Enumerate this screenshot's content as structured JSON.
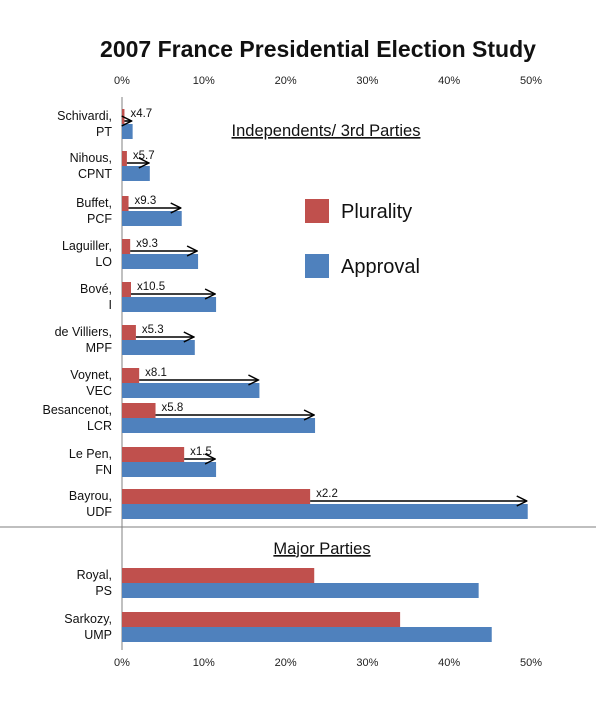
{
  "chart_data": {
    "type": "bar",
    "orientation": "horizontal",
    "title": "2007 France Presidential Election Study",
    "x_ticks": [
      "0%",
      "10%",
      "20%",
      "30%",
      "40%",
      "50%"
    ],
    "xlim": [
      0,
      50
    ],
    "legend": {
      "placement": "center-right",
      "entries": [
        "Plurality",
        "Approval"
      ]
    },
    "colors": {
      "plurality": "#c0504d",
      "approval": "#4f81bd"
    },
    "sections": [
      {
        "label": "Independents/ 3rd Parties",
        "candidates": [
          {
            "name": "Schivardi,",
            "party": "PT",
            "plurality": 0.3,
            "approval": 1.3,
            "multiplier": "x4.7"
          },
          {
            "name": "Nihous,",
            "party": "CPNT",
            "plurality": 0.6,
            "approval": 3.4,
            "multiplier": "x5.7"
          },
          {
            "name": "Buffet,",
            "party": "PCF",
            "plurality": 0.8,
            "approval": 7.3,
            "multiplier": "x9.3"
          },
          {
            "name": "Laguiller,",
            "party": "LO",
            "plurality": 1.0,
            "approval": 9.3,
            "multiplier": "x9.3"
          },
          {
            "name": "Bové,",
            "party": "I",
            "plurality": 1.1,
            "approval": 11.5,
            "multiplier": "x10.5"
          },
          {
            "name": "de Villiers,",
            "party": "MPF",
            "plurality": 1.7,
            "approval": 8.9,
            "multiplier": "x5.3"
          },
          {
            "name": "Voynet,",
            "party": "VEC",
            "plurality": 2.1,
            "approval": 16.8,
            "multiplier": "x8.1"
          },
          {
            "name": "Besancenot,",
            "party": "LCR",
            "plurality": 4.1,
            "approval": 23.6,
            "multiplier": "x5.8"
          },
          {
            "name": "Le Pen,",
            "party": "FN",
            "plurality": 7.6,
            "approval": 11.5,
            "multiplier": "x1.5"
          },
          {
            "name": "Bayrou,",
            "party": "UDF",
            "plurality": 23.0,
            "approval": 49.6,
            "multiplier": "x2.2"
          }
        ]
      },
      {
        "label": "Major Parties",
        "candidates": [
          {
            "name": "Royal,",
            "party": "PS",
            "plurality": 23.5,
            "approval": 43.6
          },
          {
            "name": "Sarkozy,",
            "party": "UMP",
            "plurality": 34.0,
            "approval": 45.2
          }
        ]
      }
    ]
  }
}
